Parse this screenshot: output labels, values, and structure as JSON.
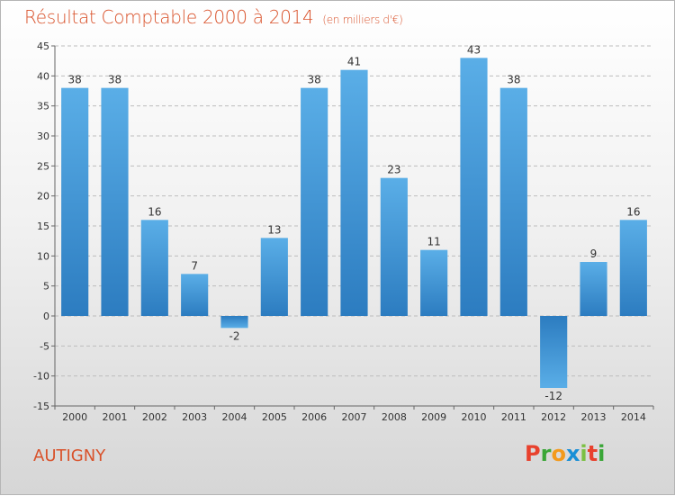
{
  "chart_data": {
    "type": "bar",
    "title": "Résultat Comptable 2000 à 2014",
    "subtitle": "(en milliers d'€)",
    "categories": [
      "2000",
      "2001",
      "2002",
      "2003",
      "2004",
      "2005",
      "2006",
      "2007",
      "2008",
      "2009",
      "2010",
      "2011",
      "2012",
      "2013",
      "2014"
    ],
    "values": [
      38,
      38,
      16,
      7,
      -2,
      13,
      38,
      41,
      23,
      11,
      43,
      38,
      -12,
      9,
      16
    ],
    "ylim": [
      -15,
      45
    ],
    "yticks": [
      -15,
      -10,
      -5,
      0,
      5,
      10,
      15,
      20,
      25,
      30,
      35,
      40,
      45
    ],
    "grid": "horizontal dashed",
    "xlabel": "",
    "ylabel": ""
  },
  "footer": {
    "commune": "AUTIGNY",
    "logo_text": "Proxiti"
  },
  "colors": {
    "title": "#d9522b",
    "bar_light": "#5aaee7",
    "bar_dark": "#2c7cc0",
    "grid": "#bdbdbd",
    "logo_letters": [
      "#e8412d",
      "#3aa637",
      "#f39a1c",
      "#1a8fd6",
      "#7bc043",
      "#e8412d",
      "#3aa637"
    ]
  }
}
